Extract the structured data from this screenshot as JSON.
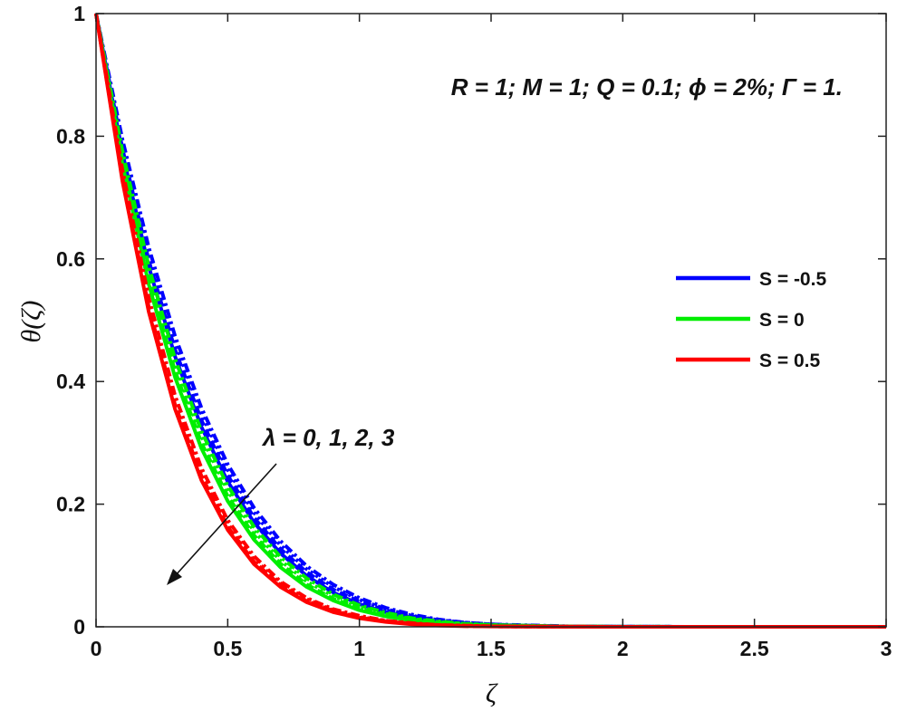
{
  "chart_data": {
    "type": "line",
    "xlabel": "ζ",
    "ylabel": "θ(ζ)",
    "xlim": [
      0,
      3
    ],
    "ylim": [
      0,
      1
    ],
    "xticks": [
      "0",
      "0.5",
      "1",
      "1.5",
      "2",
      "2.5",
      "3"
    ],
    "yticks": [
      "0",
      "0.2",
      "0.4",
      "0.6",
      "0.8",
      "1"
    ],
    "grid": false,
    "legend_position": "right",
    "parameter_annotation": "R = 1; M = 1; Q = 0.1; ϕ = 2%; Γ = 1.",
    "arrow_annotation": "λ = 0, 1, 2, 3",
    "x": [
      0,
      0.1,
      0.2,
      0.3,
      0.4,
      0.5,
      0.6,
      0.7,
      0.8,
      0.9,
      1.0,
      1.1,
      1.2,
      1.3,
      1.4,
      1.5,
      1.6,
      1.8,
      2.0,
      2.5,
      3.0
    ],
    "series": [
      {
        "name": "S = -0.5",
        "color": "#0000ff",
        "curves": [
          [
            1,
            0.773,
            0.588,
            0.441,
            0.326,
            0.237,
            0.17,
            0.12,
            0.083,
            0.056,
            0.037,
            0.024,
            0.015,
            0.009,
            0.005,
            0.003,
            0.002,
            0.0005,
            0.0001,
            0,
            0
          ],
          [
            1,
            0.78,
            0.598,
            0.452,
            0.337,
            0.247,
            0.178,
            0.127,
            0.089,
            0.061,
            0.041,
            0.027,
            0.017,
            0.01,
            0.006,
            0.004,
            0.002,
            0.0006,
            0.0001,
            0,
            0
          ],
          [
            1,
            0.788,
            0.609,
            0.463,
            0.347,
            0.256,
            0.186,
            0.133,
            0.094,
            0.065,
            0.044,
            0.029,
            0.018,
            0.011,
            0.007,
            0.004,
            0.002,
            0.0007,
            0.0002,
            0,
            0
          ],
          [
            1,
            0.795,
            0.619,
            0.474,
            0.357,
            0.265,
            0.194,
            0.14,
            0.099,
            0.069,
            0.047,
            0.031,
            0.02,
            0.012,
            0.007,
            0.004,
            0.003,
            0.0008,
            0.0002,
            0,
            0
          ]
        ]
      },
      {
        "name": "S = 0",
        "color": "#00ee00",
        "curves": [
          [
            1,
            0.755,
            0.559,
            0.407,
            0.291,
            0.205,
            0.142,
            0.097,
            0.065,
            0.043,
            0.027,
            0.017,
            0.01,
            0.006,
            0.003,
            0.002,
            0.001,
            0.0003,
            0,
            0,
            0
          ],
          [
            1,
            0.762,
            0.568,
            0.417,
            0.3,
            0.213,
            0.149,
            0.103,
            0.069,
            0.046,
            0.03,
            0.019,
            0.012,
            0.007,
            0.004,
            0.002,
            0.001,
            0.0003,
            0,
            0,
            0
          ],
          [
            1,
            0.769,
            0.578,
            0.427,
            0.31,
            0.222,
            0.156,
            0.108,
            0.074,
            0.05,
            0.033,
            0.021,
            0.013,
            0.008,
            0.005,
            0.003,
            0.002,
            0.0004,
            0.0001,
            0,
            0
          ],
          [
            1,
            0.776,
            0.588,
            0.437,
            0.319,
            0.23,
            0.163,
            0.114,
            0.079,
            0.053,
            0.035,
            0.023,
            0.014,
            0.009,
            0.005,
            0.003,
            0.002,
            0.0005,
            0.0001,
            0,
            0
          ]
        ]
      },
      {
        "name": "S = 0.5",
        "color": "#ff0000",
        "curves": [
          [
            1,
            0.727,
            0.514,
            0.355,
            0.239,
            0.158,
            0.102,
            0.065,
            0.04,
            0.024,
            0.014,
            0.008,
            0.004,
            0.002,
            0.001,
            0.0006,
            0.0003,
            0.0001,
            0,
            0,
            0
          ],
          [
            1,
            0.733,
            0.522,
            0.362,
            0.246,
            0.163,
            0.106,
            0.068,
            0.042,
            0.026,
            0.015,
            0.009,
            0.005,
            0.003,
            0.001,
            0.0007,
            0.0003,
            0.0001,
            0,
            0,
            0
          ],
          [
            1,
            0.739,
            0.529,
            0.37,
            0.252,
            0.168,
            0.11,
            0.071,
            0.045,
            0.027,
            0.016,
            0.01,
            0.005,
            0.003,
            0.002,
            0.0008,
            0.0004,
            0.0001,
            0,
            0,
            0
          ],
          [
            1,
            0.745,
            0.537,
            0.377,
            0.259,
            0.174,
            0.115,
            0.074,
            0.047,
            0.029,
            0.018,
            0.01,
            0.006,
            0.003,
            0.002,
            0.0009,
            0.0005,
            0.0001,
            0,
            0,
            0
          ]
        ]
      }
    ],
    "legend": [
      {
        "label": "S = -0.5",
        "color": "#0000ff"
      },
      {
        "label": "S = 0",
        "color": "#00ee00"
      },
      {
        "label": "S = 0.5",
        "color": "#ff0000"
      }
    ]
  }
}
